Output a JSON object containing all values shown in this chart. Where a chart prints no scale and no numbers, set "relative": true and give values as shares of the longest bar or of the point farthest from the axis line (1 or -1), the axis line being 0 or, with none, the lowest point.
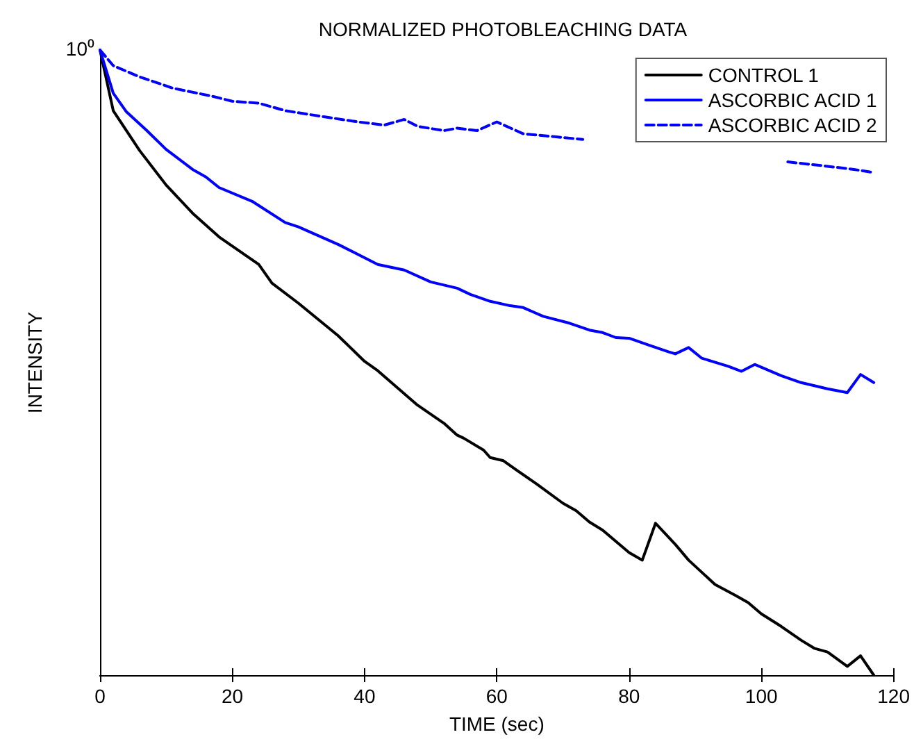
{
  "chart_data": {
    "type": "line",
    "title": "NORMALIZED PHOTOBLEACHING DATA",
    "xlabel": "TIME (sec)",
    "ylabel": "INTENSITY",
    "annotations": [
      "10⁰"
    ],
    "relative": true,
    "grid": false,
    "legend": "top right",
    "marker": "none",
    "xlim": [
      0,
      120
    ],
    "xticks": [
      0,
      20,
      40,
      60,
      80,
      100,
      120
    ],
    "series": [
      {
        "name": "CONTROL 1",
        "color": "#000000",
        "line_style": "solid",
        "x": [
          0,
          2,
          6,
          10,
          14,
          18,
          24,
          26,
          30,
          36,
          40,
          42,
          48,
          52,
          54,
          55,
          58,
          59,
          61,
          63,
          66,
          70,
          72,
          74,
          76,
          80,
          82,
          84,
          87,
          89,
          93,
          96,
          98,
          100,
          103,
          106,
          108,
          110,
          113,
          115,
          117
        ],
        "values": [
          1,
          0.903,
          0.839,
          0.784,
          0.739,
          0.701,
          0.657,
          0.627,
          0.595,
          0.543,
          0.502,
          0.487,
          0.432,
          0.403,
          0.384,
          0.379,
          0.36,
          0.348,
          0.343,
          0.328,
          0.306,
          0.275,
          0.263,
          0.245,
          0.232,
          0.196,
          0.184,
          0.243,
          0.209,
          0.184,
          0.145,
          0.128,
          0.116,
          0.098,
          0.078,
          0.056,
          0.043,
          0.037,
          0.014,
          0.031,
          0
        ]
      },
      {
        "name": "ASCORBIC ACID 1",
        "color": "#0000ff",
        "line_style": "solid",
        "x": [
          0,
          2,
          4,
          7,
          10,
          14,
          16,
          18,
          23,
          28,
          30,
          36,
          42,
          46,
          50,
          54,
          56,
          59,
          62,
          64,
          67,
          71,
          74,
          76,
          78,
          80,
          83,
          86,
          87,
          89,
          91,
          95,
          97,
          99,
          103,
          106,
          110,
          113,
          115,
          117
        ],
        "values": [
          1,
          0.931,
          0.901,
          0.872,
          0.841,
          0.809,
          0.797,
          0.78,
          0.758,
          0.724,
          0.717,
          0.689,
          0.657,
          0.648,
          0.629,
          0.619,
          0.609,
          0.598,
          0.591,
          0.588,
          0.574,
          0.563,
          0.552,
          0.548,
          0.54,
          0.539,
          0.528,
          0.517,
          0.514,
          0.524,
          0.507,
          0.494,
          0.486,
          0.497,
          0.479,
          0.468,
          0.458,
          0.452,
          0.481,
          0.468
        ]
      },
      {
        "name": "ASCORBIC ACID 2",
        "color": "#0000ff",
        "line_style": "dashed",
        "x": [
          0,
          2,
          6,
          11,
          17,
          20,
          24,
          28,
          34,
          39,
          43,
          46,
          48,
          52,
          54,
          57,
          60,
          64,
          69,
          73,
          88,
          104,
          110,
          114,
          117
        ],
        "values": [
          1,
          0.975,
          0.957,
          0.939,
          0.926,
          0.918,
          0.915,
          0.903,
          0.893,
          0.885,
          0.88,
          0.889,
          0.878,
          0.871,
          0.875,
          0.871,
          0.885,
          0.866,
          0.861,
          0.857,
          null,
          0.821,
          0.814,
          0.809,
          0.804
        ]
      }
    ]
  }
}
